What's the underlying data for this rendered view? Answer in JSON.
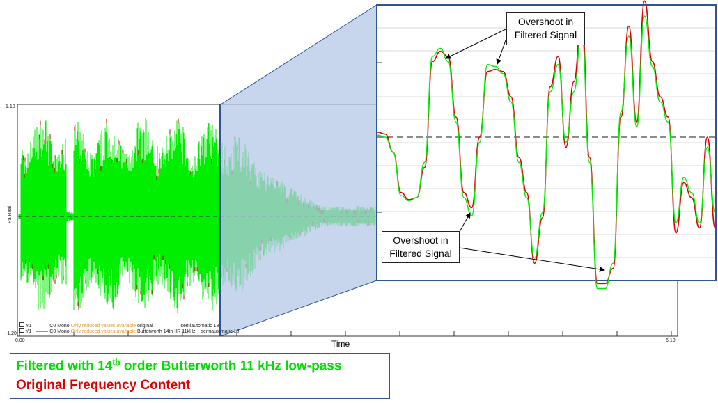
{
  "chart_data": [
    {
      "type": "line",
      "panel": "main",
      "xlabel": "Time",
      "ylabel": "Pa Real",
      "x_ticks": [
        "0.00",
        "6.10"
      ],
      "y_ticks": [
        "1.10",
        "-1.20"
      ],
      "xlim": [
        0.0,
        6.1
      ],
      "ylim": [
        -1.2,
        1.1
      ],
      "grid": false,
      "series": [
        {
          "name": "original",
          "color": "#cc0000"
        },
        {
          "name": "Butterworth 14th IIR 11kHz",
          "color": "#00ff00"
        }
      ],
      "legend": [
        {
          "marker": "Y1",
          "channel": "C0 Mono",
          "status": "Only reduced values available",
          "name": "original",
          "mode": "semiautomatic 18"
        },
        {
          "marker": "Y1",
          "channel": "C0 Mono",
          "status": "Only reduced values available",
          "name": "Butterworth 14th IIR 11kHz",
          "mode": "semiautomatic 18"
        }
      ]
    },
    {
      "type": "line",
      "panel": "zoom",
      "grid": true,
      "series": [
        {
          "name": "original",
          "color": "#dd0000",
          "values": [
            0.05,
            0.03,
            -0.15,
            -0.55,
            -0.62,
            -0.6,
            -0.3,
            0.75,
            0.85,
            0.8,
            0.2,
            -0.55,
            -0.7,
            0.0,
            0.65,
            0.67,
            0.65,
            0.4,
            -0.2,
            -0.55,
            -1.25,
            -0.8,
            0.5,
            0.8,
            -0.1,
            0.55,
            1.2,
            -0.2,
            -1.45,
            -1.45,
            -1.3,
            0.2,
            1.1,
            0.15,
            1.35,
            0.75,
            0.4,
            0.2,
            -0.95,
            -0.45,
            -0.6,
            -0.9,
            0.0,
            -0.9
          ]
        },
        {
          "name": "filtered",
          "color": "#00ee00",
          "values": [
            0.02,
            0.0,
            -0.15,
            -0.58,
            -0.63,
            -0.6,
            -0.25,
            0.8,
            0.88,
            0.75,
            0.15,
            -0.6,
            -0.78,
            -0.05,
            0.72,
            0.7,
            0.63,
            0.35,
            -0.25,
            -0.6,
            -1.2,
            -0.75,
            0.45,
            0.72,
            -0.05,
            0.45,
            1.05,
            -0.25,
            -1.5,
            -1.5,
            -1.25,
            0.25,
            1.0,
            0.1,
            1.2,
            0.7,
            0.35,
            0.15,
            -0.85,
            -0.4,
            -0.55,
            -0.85,
            -0.1,
            -0.75
          ]
        }
      ]
    }
  ],
  "annotations": {
    "callout_top_line1": "Overshoot in",
    "callout_top_line2": "Filtered Signal",
    "callout_bottom_line1": "Overshoot in",
    "callout_bottom_line2": "Filtered Signal"
  },
  "caption": {
    "line1_pre": "Filtered with 14",
    "line1_sup": "th",
    "line1_post": " order Butterworth 11 kHz low-pass",
    "line2": "Original Frequency Content"
  },
  "colors": {
    "filtered": "#00ff00",
    "original": "#cc0000",
    "caption_green": "#00e000",
    "caption_red": "#e00000",
    "zoom_fill": "#b4c7e7",
    "zoom_border": "#2f5597"
  }
}
